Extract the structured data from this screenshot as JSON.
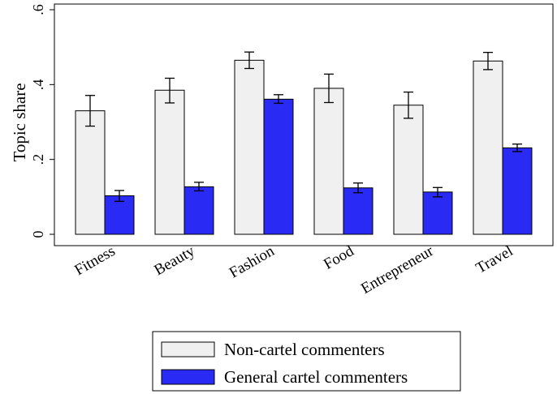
{
  "chart_data": {
    "type": "bar",
    "title": "",
    "xlabel": "",
    "ylabel": "Topic share",
    "ylim": [
      0,
      0.6
    ],
    "yticks": [
      {
        "value": 0,
        "label": "0"
      },
      {
        "value": 0.2,
        "label": ".2"
      },
      {
        "value": 0.4,
        "label": ".4"
      },
      {
        "value": 0.6,
        "label": ".6"
      }
    ],
    "grid": false,
    "legend_position": "bottom",
    "categories": [
      "Fitness",
      "Beauty",
      "Fashion",
      "Food",
      "Entrepreneur",
      "Travel"
    ],
    "series": [
      {
        "name": "Non-cartel commenters",
        "color": "#f0f0f0",
        "values": [
          0.33,
          0.385,
          0.465,
          0.39,
          0.345,
          0.463
        ],
        "ci_low": [
          0.289,
          0.351,
          0.443,
          0.352,
          0.31,
          0.44
        ],
        "ci_high": [
          0.371,
          0.417,
          0.487,
          0.428,
          0.38,
          0.486
        ]
      },
      {
        "name": "General cartel commenters",
        "color": "#2a2af5",
        "values": [
          0.103,
          0.127,
          0.361,
          0.124,
          0.113,
          0.231
        ],
        "ci_low": [
          0.088,
          0.116,
          0.35,
          0.111,
          0.1,
          0.221
        ],
        "ci_high": [
          0.117,
          0.139,
          0.373,
          0.137,
          0.125,
          0.241
        ]
      }
    ]
  }
}
